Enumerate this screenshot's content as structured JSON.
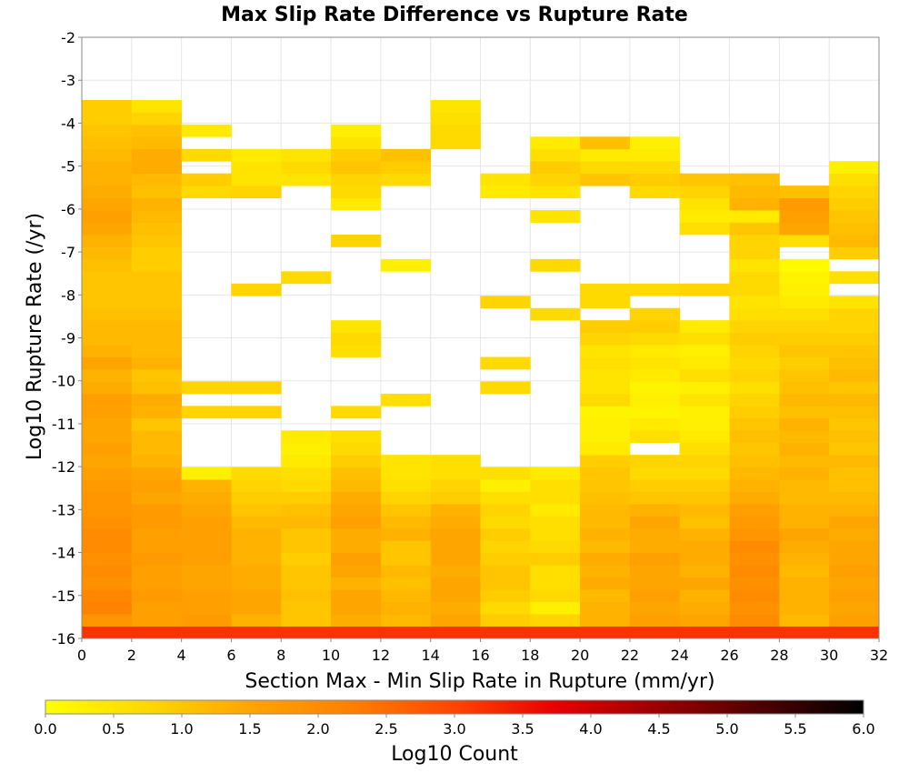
{
  "chart_data": {
    "type": "heatmap",
    "title": "Max Slip Rate Difference vs Rupture Rate",
    "xlabel": "Section Max - Min Slip Rate in Rupture (mm/yr)",
    "ylabel": "Log10 Rupture Rate (/yr)",
    "colorbar_label": "Log10 Count",
    "xlim": [
      0,
      32
    ],
    "ylim": [
      -16,
      -2
    ],
    "x_ticks": [
      "0",
      "2",
      "4",
      "6",
      "8",
      "10",
      "12",
      "14",
      "16",
      "18",
      "20",
      "22",
      "24",
      "26",
      "28",
      "30",
      "32"
    ],
    "y_ticks": [
      "-2",
      "-3",
      "-4",
      "-5",
      "-6",
      "-7",
      "-8",
      "-9",
      "-10",
      "-11",
      "-12",
      "-13",
      "-14",
      "-15",
      "-16"
    ],
    "colorbar_range": [
      0,
      6
    ],
    "colorbar_ticks": [
      "0.0",
      "0.5",
      "1.0",
      "1.5",
      "2.0",
      "2.5",
      "3.0",
      "3.5",
      "4.0",
      "4.5",
      "5.0",
      "5.5",
      "6.0"
    ],
    "colormap": [
      "#ffff00",
      "#ffd700",
      "#ffa500",
      "#ff7f00",
      "#ff4500",
      "#e60000",
      "#990000",
      "#4d0000",
      "#000000"
    ],
    "x_bin_width": 2,
    "y_bin_height": 0.285,
    "y_bin_start": -16,
    "columns": [
      {
        "x": 1,
        "rows": "0:3.2,1:1.8,2:2.2,3:2.1,4:1.9,5:2.0,6:1.9,7:2.0,8:2.0,9:1.9,10:1.8,11:1.8,12:1.7,13:1.6,14:1.5,15:1.6,16:1.5,17:1.5,18:1.6,19:1.6,20:1.4,21:1.3,22:1.5,23:1.3,24:1.2,25:1.2,26:1.1,27:1.0,28:1.0,29:1.0,30:1.1,31:1.2,32:1.3,33:1.5,34:1.6,35:1.5,36:1.4,37:1.3,38:1.3,39:1.2,40:1.1,41:1.0,42:0.9,43:0.9"
      },
      {
        "x": 3,
        "rows": "0:3.2,1:1.6,2:1.6,3:1.7,4:1.6,5:1.6,6:1.7,7:1.6,8:1.6,9:1.7,10:1.7,11:1.5,12:1.6,13:1.5,14:1.3,15:1.2,16:1.2,17:1.0,18:1.3,19:1.4,20:1.1,21:1.0,22:1.3,23:1.2,24:1.2,25:1.2,26:1.1,27:1.0,28:1.0,29:1.0,30:0.9,31:0.9,32:1.0,33:1.1,34:1.2,35:1.3,36:1.1,37:1.2,38:1.4,39:1.4,40:1.2,41:1.1,42:0.8,43:0.5"
      },
      {
        "x": 5,
        "rows": "0:3.2,1:1.7,2:1.6,3:1.6,4:1.5,5:1.5,6:1.6,7:1.6,8:1.6,9:1.6,10:1.5,11:1.4,12:1.3,13:0.3,18:0.8,20:0.8,36:0.7,37:0.9,39:0.7,41:0.4"
      },
      {
        "x": 7,
        "rows": "0:3.2,1:1.3,2:1.5,3:1.5,4:1.4,5:1.4,6:1.3,7:1.3,8:1.3,9:1.2,10:1.0,11:0.9,12:0.8,13:0.7,18:0.8,20:0.8,28:0.8,36:0.8,37:0.5,38:0.5,39:0.4"
      },
      {
        "x": 9,
        "rows": "0:3.2,1:1.0,2:1.0,3:1.1,4:1.0,5:1.0,6:0.9,7:1.0,8:1.0,9:1.2,10:1.1,11:0.9,12:0.7,13:0.6,14:0.4,15:0.3,16:0.4,29:0.7,37:0.5,38:0.7,39:0.5"
      },
      {
        "x": 11,
        "rows": "0:3.2,1:1.4,2:1.5,3:1.5,4:1.3,5:1.5,6:1.6,7:1.4,8:1.4,9:1.6,10:1.5,11:1.4,12:1.2,13:1.1,14:0.9,15:0.7,16:0.6,18:0.7,23:0.6,24:0.7,25:0.5,32:0.8,35:0.4,36:0.7,37:0.8,38:1.0,39:0.9,40:0.5,41:0.3"
      },
      {
        "x": 13,
        "rows": "0:3.2,1:1.2,2:1.3,3:1.2,4:1.1,5:1.2,6:1.0,7:1.0,8:1.3,9:1.2,10:1.0,11:0.8,12:0.6,13:0.5,14:0.5,19:0.6,30:0.3,37:0.7,38:0.9,39:1.1"
      },
      {
        "x": 15,
        "rows": "0:3.2,1:1.5,2:1.4,3:1.5,4:1.5,5:1.4,6:1.5,7:1.5,8:1.5,9:1.4,10:1.3,11:0.9,12:0.8,13:0.6,14:0.6,40:0.7,41:0.7,42:0.6,43:0.5"
      },
      {
        "x": 17,
        "rows": "0:3.2,1:0.9,2:0.7,3:0.9,4:1.0,5:1.0,6:0.9,7:0.8,8:0.9,9:0.7,10:0.8,11:0.6,12:0.3,13:0.6,20:0.7,22:0.7,27:0.8,36:0.4,37:0.5"
      },
      {
        "x": 19,
        "rows": "0:3.2,1:0.8,2:0.3,3:0.7,4:0.6,5:0.6,6:0.9,7:0.7,8:0.6,9:0.6,10:0.4,11:0.6,12:0.6,13:0.4,26:0.7,30:0.7,34:0.5,36:0.5,37:0.8,38:0.9,39:0.6,40:0.4"
      },
      {
        "x": 21,
        "rows": "0:3.2,1:1.3,2:1.3,3:1.2,4:1.4,5:1.3,6:1.4,7:1.2,8:1.3,9:1.2,10:1.2,11:1.1,12:1.0,13:1.0,14:0.9,15:0.4,16:0.3,17:0.3,18:0.2,19:0.7,20:0.5,21:0.5,22:0.6,23:0.5,24:0.8,25:0.9,27:0.7,28:0.7,37:1.0,38:0.7,39:0.4,40:1.1"
      },
      {
        "x": 23,
        "rows": "0:3.2,1:1.6,2:1.5,3:1.6,4:1.5,5:1.5,6:1.6,7:1.4,8:1.4,9:1.5,10:1.3,11:1.0,12:0.9,13:0.7,14:0.8,16:0.6,17:0.4,18:0.2,19:0.3,20:0.2,21:0.4,22:0.5,23:0.4,24:0.7,25:0.9,26:0.8,28:0.7,36:0.7,37:0.9,38:0.7,39:0.4,40:0.3"
      },
      {
        "x": 25,
        "rows": "0:3.2,1:1.5,2:1.4,3:1.3,4:1.5,5:1.3,6:1.4,7:1.4,8:1.3,9:1.1,10:1.2,11:1.0,12:0.9,13:0.7,14:0.8,15:0.6,16:0.4,17:0.3,18:0.3,19:0.5,20:0.3,21:0.6,22:0.4,23:0.3,24:0.6,25:0.4,28:0.8,33:0.6,34:0.4,35:0.5,36:0.8,37:1.0"
      },
      {
        "x": 27,
        "rows": "0:3.2,1:2.0,2:1.9,3:2.0,4:1.9,5:2.0,6:1.9,7:2.0,8:1.8,9:1.7,10:1.6,11:1.4,12:1.3,13:1.2,14:1.1,15:1.0,16:1.1,17:1.0,18:0.9,19:0.8,20:0.6,21:0.8,22:0.7,23:0.8,24:0.9,25:0.8,26:0.6,27:0.5,28:0.7,29:0.7,30:0.5,31:0.8,32:0.8,33:1.0,34:0.4,35:1.3,36:1.2,37:1.1"
      },
      {
        "x": 29,
        "rows": "0:3.2,1:1.2,2:1.3,3:1.3,4:1.3,5:1.2,6:1.3,7:1.4,8:1.5,9:1.3,10:1.3,11:1.2,12:1.2,13:1.3,14:1.2,15:1.3,16:1.2,17:1.3,18:1.1,19:1.2,20:1.1,21:1.0,22:0.9,23:1.0,24:0.9,25:0.8,26:0.6,27:0.4,28:0.3,29:0.2,30:0.1,32:0.6,33:1.5,34:1.6,35:1.7,36:1.1"
      },
      {
        "x": 31,
        "rows": "0:3.2,1:1.6,2:1.5,3:1.6,4:1.5,5:1.6,6:1.5,7:1.5,8:1.4,9:1.5,10:1.3,11:1.2,12:1.1,13:1.1,14:1.2,15:1.0,16:1.1,17:1.0,18:1.1,19:1.2,20:1.0,21:1.2,22:1.1,23:1.0,24:0.9,25:0.8,26:0.8,27:0.5,29:0.6,31:0.9,32:1.2,33:1.1,34:1.0,35:0.9,36:0.8,37:0.6,38:0.3"
      }
    ]
  }
}
